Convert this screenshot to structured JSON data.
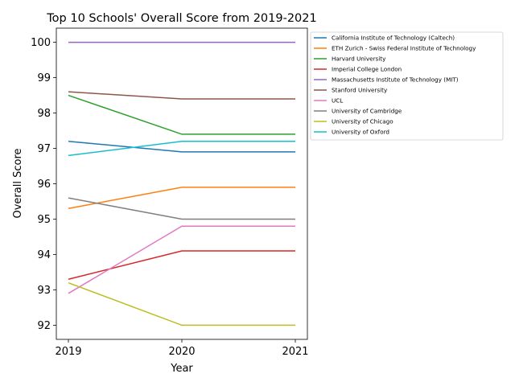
{
  "chart_data": {
    "type": "line",
    "title": "Top 10 Schools' Overall Score from 2019-2021",
    "xlabel": "Year",
    "ylabel": "Overall Score",
    "x": [
      "2019",
      "2020",
      "2021"
    ],
    "ylim": [
      91.6,
      100.4
    ],
    "yticks": [
      "92",
      "93",
      "94",
      "95",
      "96",
      "97",
      "98",
      "99",
      "100"
    ],
    "grid": false,
    "legend_position": "outside-right",
    "series": [
      {
        "name": "California Institute of Technology (Caltech)",
        "color": "#1f77b4",
        "values": [
          97.2,
          96.9,
          96.9
        ]
      },
      {
        "name": "ETH Zurich - Swiss Federal Institute of Technology",
        "color": "#ff7f0e",
        "values": [
          95.3,
          95.9,
          95.9
        ]
      },
      {
        "name": "Harvard University",
        "color": "#2ca02c",
        "values": [
          98.5,
          97.4,
          97.4
        ]
      },
      {
        "name": "Imperial College London",
        "color": "#d62728",
        "values": [
          93.3,
          94.1,
          94.1
        ]
      },
      {
        "name": "Massachusetts Institute of Technology (MIT)",
        "color": "#9467bd",
        "values": [
          100.0,
          100.0,
          100.0
        ]
      },
      {
        "name": "Stanford University",
        "color": "#8c564b",
        "values": [
          98.6,
          98.4,
          98.4
        ]
      },
      {
        "name": "UCL",
        "color": "#e377c2",
        "values": [
          92.9,
          94.8,
          94.8
        ]
      },
      {
        "name": "University of Cambridge",
        "color": "#7f7f7f",
        "values": [
          95.6,
          95.0,
          95.0
        ]
      },
      {
        "name": "University of Chicago",
        "color": "#bcbd22",
        "values": [
          93.2,
          92.0,
          92.0
        ]
      },
      {
        "name": "University of Oxford",
        "color": "#17becf",
        "values": [
          96.8,
          97.2,
          97.2
        ]
      }
    ]
  }
}
